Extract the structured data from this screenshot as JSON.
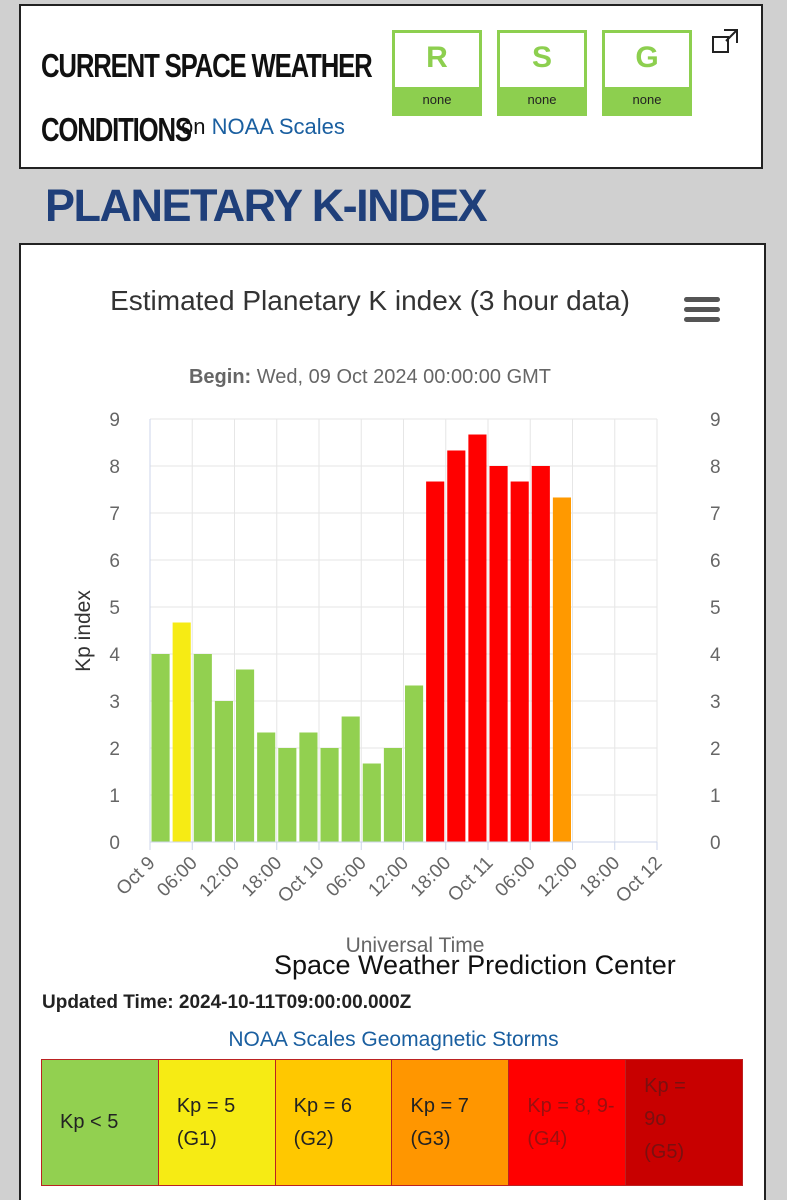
{
  "header": {
    "title_line1": "CURRENT SPACE WEATHER",
    "title_line2": "CONDITIONS",
    "on_text": "on",
    "noaa_link": "NOAA Scales",
    "scales": [
      {
        "letter": "R",
        "value": "none"
      },
      {
        "letter": "S",
        "value": "none"
      },
      {
        "letter": "G",
        "value": "none"
      }
    ],
    "scale_color": "#8dcf4f",
    "expand_icon": "external-window-icon"
  },
  "section_title": "PLANETARY K-INDEX",
  "menu_icon": "hamburger-menu-icon",
  "chart_data": {
    "type": "bar",
    "title": "Estimated Planetary K index (3 hour data)",
    "subtitle_label": "Begin:",
    "subtitle_value": "Wed, 09 Oct 2024 00:00:00 GMT",
    "xlabel": "Universal Time",
    "ylabel": "Kp index",
    "ylim": [
      0,
      9
    ],
    "yticks": [
      "0",
      "1",
      "2",
      "3",
      "4",
      "5",
      "6",
      "7",
      "8",
      "9"
    ],
    "xticks": [
      "Oct 9",
      "06:00",
      "12:00",
      "18:00",
      "Oct 10",
      "06:00",
      "12:00",
      "18:00",
      "Oct 11",
      "06:00",
      "12:00",
      "18:00",
      "Oct 12"
    ],
    "grid": true,
    "values": [
      4,
      4.67,
      4,
      3,
      3.67,
      2.33,
      2,
      2.33,
      2,
      2.67,
      1.67,
      2,
      3.33,
      7.67,
      8.33,
      8.67,
      8,
      7.67,
      8,
      7.33
    ],
    "colors": [
      "#92d050",
      "#f6eb14",
      "#92d050",
      "#92d050",
      "#92d050",
      "#92d050",
      "#92d050",
      "#92d050",
      "#92d050",
      "#92d050",
      "#92d050",
      "#92d050",
      "#92d050",
      "#ff0000",
      "#ff0000",
      "#ff0000",
      "#ff0000",
      "#ff0000",
      "#ff0000",
      "#ff9900"
    ]
  },
  "credit": "Space Weather Prediction Center",
  "updated": "Updated Time: 2024-10-11T09:00:00.000Z",
  "storm_link": "NOAA Scales Geomagnetic Storms",
  "legend": [
    {
      "lines": [
        "Kp < 5"
      ],
      "bg": "#92d050",
      "color": "#222222"
    },
    {
      "lines": [
        "Kp = 5",
        "(G1)"
      ],
      "bg": "#f6eb14",
      "color": "#222222"
    },
    {
      "lines": [
        "Kp = 6",
        "(G2)"
      ],
      "bg": "#ffc800",
      "color": "#222222"
    },
    {
      "lines": [
        "Kp = 7",
        "(G3)"
      ],
      "bg": "#ff9600",
      "color": "#222222"
    },
    {
      "lines": [
        "Kp = 8, 9-",
        "(G4)"
      ],
      "bg": "#ff0000",
      "color": "#9a1010"
    },
    {
      "lines": [
        "Kp =",
        "9o",
        "(G5)"
      ],
      "bg": "#c80000",
      "color": "#7a1010"
    }
  ]
}
